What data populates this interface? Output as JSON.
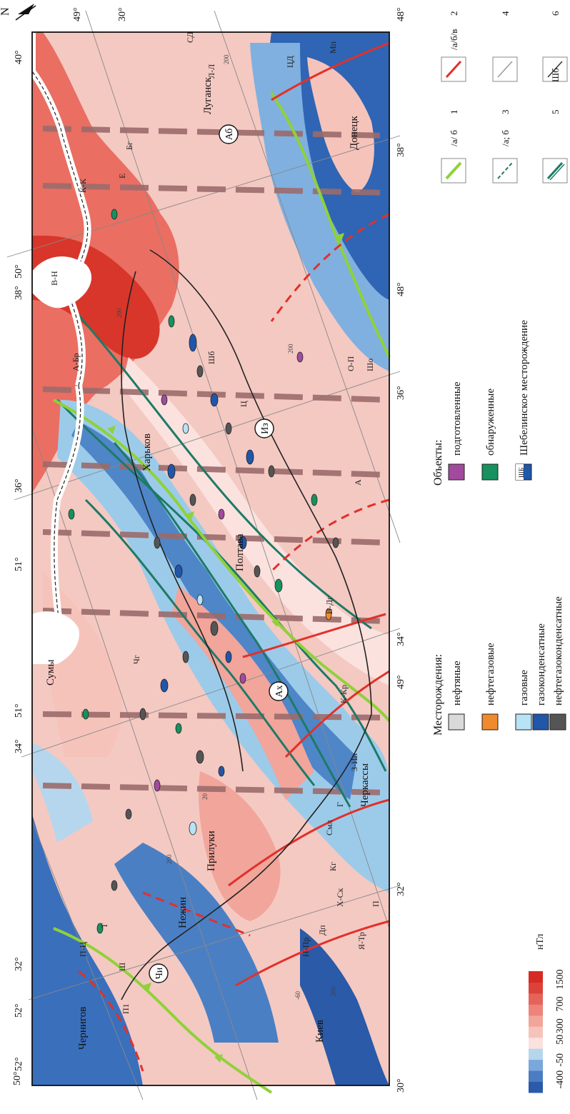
{
  "map": {
    "north_arrow": "N",
    "grid_labels": {
      "lat_top": [
        "52°",
        "51°",
        "50°",
        "49°",
        "48°"
      ],
      "lon_top": [
        "40°",
        "38°",
        "36°",
        "34°",
        "32°"
      ],
      "lon_bottom": [
        "30°",
        "32°",
        "34°",
        "36°",
        "38°"
      ],
      "lat_bottom": [
        "50°",
        "51°",
        "52°",
        "48°",
        "49°",
        "50°"
      ],
      "right_column": [
        "30°",
        "49°",
        "48°"
      ]
    },
    "circled_labels": [
      "Аб",
      "Из",
      "Ах",
      "Чи"
    ],
    "place_labels": [
      "Луганск",
      "Донецк",
      "Харьков",
      "Полтава",
      "Нежин",
      "Прилуки",
      "Черкассы",
      "Чернигов",
      "Киев",
      "Сумы"
    ],
    "fault_labels": [
      "СД",
      "Л-Л",
      "Бг",
      "К-К",
      "ЦД",
      "Мп",
      "А-Бр",
      "Шб",
      "В-Н",
      "Ц",
      "О-П",
      "Шо",
      "В-Дг",
      "К-Кр",
      "З-Ии",
      "Смл",
      "Кг",
      "Г",
      "Я-Тр",
      "П",
      "Дп",
      "Х-Ск",
      "Н-Пр",
      "П-Ц",
      "Чг",
      "П1",
      "Е",
      "Ш",
      "Т",
      "А"
    ],
    "contour_values": [
      "200",
      "200",
      "200",
      "200",
      "-60",
      "20",
      "200"
    ]
  },
  "legend": {
    "deposits": {
      "title": "Месторождения:",
      "items": [
        {
          "label": "нефтяные",
          "color": "#d9d9d9"
        },
        {
          "label": "нефтегазовые",
          "color": "#f08a2c"
        },
        {
          "label": "газовые",
          "color": "#b8e2f5"
        },
        {
          "label": "газоконденсатные",
          "color": "#2156a8"
        },
        {
          "label": "нефтегазоконденсатные",
          "color": "#555555"
        }
      ]
    },
    "objects": {
      "title": "Объекты:",
      "items": [
        {
          "label": "подготовленные",
          "color": "#a24b9e"
        },
        {
          "label": "обнаруженные",
          "color": "#17915e"
        },
        {
          "label": "Шебелинское месторождение",
          "badge": "ШБ"
        }
      ]
    },
    "symbols": [
      {
        "num": "1",
        "text": "/а/ б"
      },
      {
        "num": "2",
        "text": "/а/б/в"
      },
      {
        "num": "3",
        "text": "/а; б"
      },
      {
        "num": "4",
        "text": ""
      },
      {
        "num": "5",
        "text": "Шб"
      },
      {
        "num": "6",
        "text": ""
      }
    ],
    "scale": {
      "unit": "нТл",
      "ticks": [
        "-400",
        "-50",
        "50",
        "300",
        "700",
        "1500"
      ],
      "colors": [
        "#2a5aa8",
        "#4a7dc2",
        "#7aa8da",
        "#b6d6ee",
        "#fbe2de",
        "#f6c3bb",
        "#f1a59b",
        "#ec8479",
        "#e5645a",
        "#dc4238",
        "#d62a24"
      ]
    }
  }
}
